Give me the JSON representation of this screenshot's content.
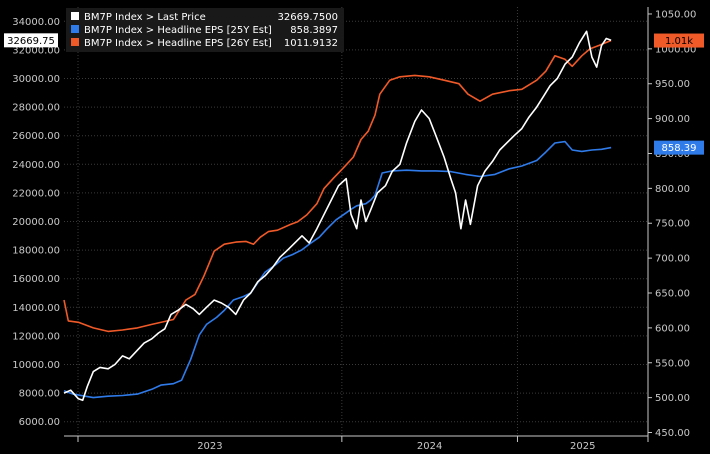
{
  "chart_data": {
    "type": "line",
    "grid": true,
    "legend_placement": "top-left",
    "x_axis": {
      "labels": [
        "2023",
        "2024",
        "2025"
      ],
      "range": [
        "2022-06-01",
        "2025-09-30"
      ]
    },
    "y_left": {
      "ticks": [
        "6000.00",
        "8000.00",
        "10000.00",
        "12000.00",
        "14000.00",
        "16000.00",
        "18000.00",
        "20000.00",
        "22000.00",
        "24000.00",
        "26000.00",
        "28000.00",
        "30000.00",
        "32000.00",
        "34000.00"
      ],
      "range": [
        5000,
        35000
      ]
    },
    "y_right": {
      "ticks": [
        "450.00",
        "500.00",
        "550.00",
        "600.00",
        "650.00",
        "700.00",
        "750.00",
        "800.00",
        "850.00",
        "900.00",
        "950.00",
        "1000.00",
        "1050.00"
      ],
      "range": [
        445,
        1060
      ]
    },
    "series": [
      {
        "name": "BM7P Index > Last Price",
        "value_text": "32669.7500",
        "color": "#ffffff",
        "axis": "left",
        "tag": "32669.75",
        "points": [
          [
            "2022-06-01",
            8000
          ],
          [
            "2022-06-15",
            8200
          ],
          [
            "2022-07-01",
            7600
          ],
          [
            "2022-07-10",
            7500
          ],
          [
            "2022-07-20",
            8500
          ],
          [
            "2022-08-01",
            9500
          ],
          [
            "2022-08-15",
            9800
          ],
          [
            "2022-09-01",
            9700
          ],
          [
            "2022-09-15",
            10000
          ],
          [
            "2022-10-01",
            10600
          ],
          [
            "2022-10-15",
            10400
          ],
          [
            "2022-11-01",
            11000
          ],
          [
            "2022-11-15",
            11500
          ],
          [
            "2022-12-01",
            11800
          ],
          [
            "2022-12-15",
            12200
          ],
          [
            "2022-12-28",
            12500
          ],
          [
            "2023-01-10",
            13500
          ],
          [
            "2023-01-25",
            13800
          ],
          [
            "2023-02-10",
            14200
          ],
          [
            "2023-02-25",
            13900
          ],
          [
            "2023-03-10",
            13500
          ],
          [
            "2023-03-25",
            14000
          ],
          [
            "2023-04-10",
            14500
          ],
          [
            "2023-04-25",
            14300
          ],
          [
            "2023-05-10",
            14000
          ],
          [
            "2023-05-25",
            13500
          ],
          [
            "2023-06-10",
            14500
          ],
          [
            "2023-06-25",
            15000
          ],
          [
            "2023-07-10",
            15800
          ],
          [
            "2023-07-25",
            16200
          ],
          [
            "2023-08-10",
            16800
          ],
          [
            "2023-08-25",
            17500
          ],
          [
            "2023-09-10",
            18000
          ],
          [
            "2023-09-25",
            18500
          ],
          [
            "2023-10-10",
            19000
          ],
          [
            "2023-10-25",
            18500
          ],
          [
            "2023-11-10",
            19500
          ],
          [
            "2023-11-25",
            20500
          ],
          [
            "2023-12-10",
            21500
          ],
          [
            "2023-12-25",
            22500
          ],
          [
            "2024-01-10",
            23000
          ],
          [
            "2024-01-20",
            20500
          ],
          [
            "2024-02-01",
            19500
          ],
          [
            "2024-02-10",
            21500
          ],
          [
            "2024-02-20",
            20000
          ],
          [
            "2024-03-01",
            20800
          ],
          [
            "2024-03-15",
            22000
          ],
          [
            "2024-04-01",
            22500
          ],
          [
            "2024-04-15",
            23500
          ],
          [
            "2024-05-01",
            24000
          ],
          [
            "2024-05-15",
            25500
          ],
          [
            "2024-06-01",
            27000
          ],
          [
            "2024-06-15",
            27800
          ],
          [
            "2024-07-01",
            27200
          ],
          [
            "2024-07-15",
            26000
          ],
          [
            "2024-08-01",
            24500
          ],
          [
            "2024-08-15",
            23000
          ],
          [
            "2024-08-25",
            22000
          ],
          [
            "2024-09-05",
            19500
          ],
          [
            "2024-09-15",
            21500
          ],
          [
            "2024-09-25",
            19800
          ],
          [
            "2024-10-10",
            22500
          ],
          [
            "2024-10-25",
            23500
          ],
          [
            "2024-11-10",
            24200
          ],
          [
            "2024-11-25",
            25000
          ],
          [
            "2024-12-10",
            25500
          ],
          [
            "2024-12-25",
            26000
          ],
          [
            "2025-01-10",
            26500
          ],
          [
            "2025-01-25",
            27300
          ],
          [
            "2025-02-10",
            28000
          ],
          [
            "2025-02-25",
            28800
          ],
          [
            "2025-03-10",
            29500
          ],
          [
            "2025-03-25",
            30000
          ],
          [
            "2025-04-10",
            31000
          ],
          [
            "2025-04-25",
            31500
          ],
          [
            "2025-05-10",
            32500
          ],
          [
            "2025-05-25",
            33300
          ],
          [
            "2025-06-05",
            31500
          ],
          [
            "2025-06-15",
            30800
          ],
          [
            "2025-06-25",
            32300
          ],
          [
            "2025-07-05",
            32800
          ],
          [
            "2025-07-15",
            32669.75
          ]
        ]
      },
      {
        "name": "BM7P Index > Headline EPS [25Y Est]",
        "value_text": "858.3897",
        "color": "#2f7bea",
        "axis": "right",
        "tag": "858.39",
        "points": [
          [
            "2022-06-01",
            510
          ],
          [
            "2022-06-20",
            505
          ],
          [
            "2022-07-15",
            502
          ],
          [
            "2022-08-01",
            500
          ],
          [
            "2022-09-01",
            502
          ],
          [
            "2022-10-01",
            503
          ],
          [
            "2022-11-01",
            505
          ],
          [
            "2022-12-01",
            512
          ],
          [
            "2022-12-20",
            518
          ],
          [
            "2023-01-15",
            520
          ],
          [
            "2023-02-01",
            525
          ],
          [
            "2023-02-20",
            555
          ],
          [
            "2023-03-10",
            590
          ],
          [
            "2023-03-25",
            605
          ],
          [
            "2023-04-15",
            615
          ],
          [
            "2023-05-01",
            625
          ],
          [
            "2023-05-20",
            640
          ],
          [
            "2023-06-10",
            645
          ],
          [
            "2023-06-25",
            650
          ],
          [
            "2023-07-10",
            665
          ],
          [
            "2023-07-25",
            680
          ],
          [
            "2023-08-15",
            690
          ],
          [
            "2023-09-01",
            700
          ],
          [
            "2023-09-20",
            705
          ],
          [
            "2023-10-10",
            712
          ],
          [
            "2023-10-25",
            720
          ],
          [
            "2023-11-15",
            730
          ],
          [
            "2023-12-01",
            742
          ],
          [
            "2023-12-20",
            755
          ],
          [
            "2024-01-10",
            765
          ],
          [
            "2024-01-20",
            770
          ],
          [
            "2024-02-01",
            775
          ],
          [
            "2024-02-20",
            778
          ],
          [
            "2024-03-01",
            783
          ],
          [
            "2024-03-10",
            790
          ],
          [
            "2024-03-25",
            822
          ],
          [
            "2024-04-15",
            825
          ],
          [
            "2024-05-15",
            826
          ],
          [
            "2024-06-15",
            825
          ],
          [
            "2024-07-15",
            825
          ],
          [
            "2024-08-15",
            824
          ],
          [
            "2024-09-15",
            820
          ],
          [
            "2024-10-15",
            817
          ],
          [
            "2024-11-15",
            820
          ],
          [
            "2024-12-15",
            828
          ],
          [
            "2025-01-10",
            832
          ],
          [
            "2025-02-10",
            840
          ],
          [
            "2025-03-01",
            852
          ],
          [
            "2025-03-20",
            865
          ],
          [
            "2025-04-10",
            867
          ],
          [
            "2025-04-25",
            855
          ],
          [
            "2025-05-15",
            853
          ],
          [
            "2025-06-05",
            855
          ],
          [
            "2025-06-25",
            856
          ],
          [
            "2025-07-15",
            858.39
          ]
        ]
      },
      {
        "name": "BM7P Index > Headline EPS [26Y Est]",
        "value_text": "1011.9132",
        "color": "#f05a28",
        "axis": "right",
        "tag": "1.01k",
        "points": [
          [
            "2022-06-01",
            640
          ],
          [
            "2022-06-10",
            610
          ],
          [
            "2022-07-01",
            608
          ],
          [
            "2022-08-01",
            600
          ],
          [
            "2022-09-01",
            595
          ],
          [
            "2022-10-01",
            597
          ],
          [
            "2022-11-01",
            600
          ],
          [
            "2022-12-01",
            605
          ],
          [
            "2023-01-15",
            612
          ],
          [
            "2023-02-10",
            640
          ],
          [
            "2023-03-01",
            648
          ],
          [
            "2023-03-20",
            675
          ],
          [
            "2023-04-10",
            710
          ],
          [
            "2023-05-01",
            720
          ],
          [
            "2023-05-25",
            723
          ],
          [
            "2023-06-15",
            724
          ],
          [
            "2023-07-01",
            720
          ],
          [
            "2023-07-15",
            730
          ],
          [
            "2023-08-01",
            738
          ],
          [
            "2023-08-20",
            740
          ],
          [
            "2023-09-15",
            748
          ],
          [
            "2023-10-01",
            752
          ],
          [
            "2023-10-20",
            762
          ],
          [
            "2023-11-10",
            778
          ],
          [
            "2023-11-25",
            800
          ],
          [
            "2023-12-15",
            815
          ],
          [
            "2024-01-05",
            830
          ],
          [
            "2024-01-25",
            845
          ],
          [
            "2024-02-10",
            870
          ],
          [
            "2024-02-25",
            882
          ],
          [
            "2024-03-10",
            905
          ],
          [
            "2024-03-20",
            935
          ],
          [
            "2024-04-10",
            955
          ],
          [
            "2024-05-01",
            960
          ],
          [
            "2024-06-01",
            962
          ],
          [
            "2024-07-01",
            960
          ],
          [
            "2024-08-01",
            955
          ],
          [
            "2024-09-01",
            950
          ],
          [
            "2024-09-20",
            935
          ],
          [
            "2024-10-15",
            925
          ],
          [
            "2024-11-10",
            935
          ],
          [
            "2024-12-15",
            940
          ],
          [
            "2025-01-10",
            942
          ],
          [
            "2025-02-10",
            955
          ],
          [
            "2025-03-01",
            968
          ],
          [
            "2025-03-20",
            990
          ],
          [
            "2025-04-10",
            985
          ],
          [
            "2025-04-25",
            975
          ],
          [
            "2025-05-15",
            990
          ],
          [
            "2025-06-01",
            1000
          ],
          [
            "2025-06-20",
            1005
          ],
          [
            "2025-07-15",
            1011.91
          ]
        ]
      }
    ]
  }
}
